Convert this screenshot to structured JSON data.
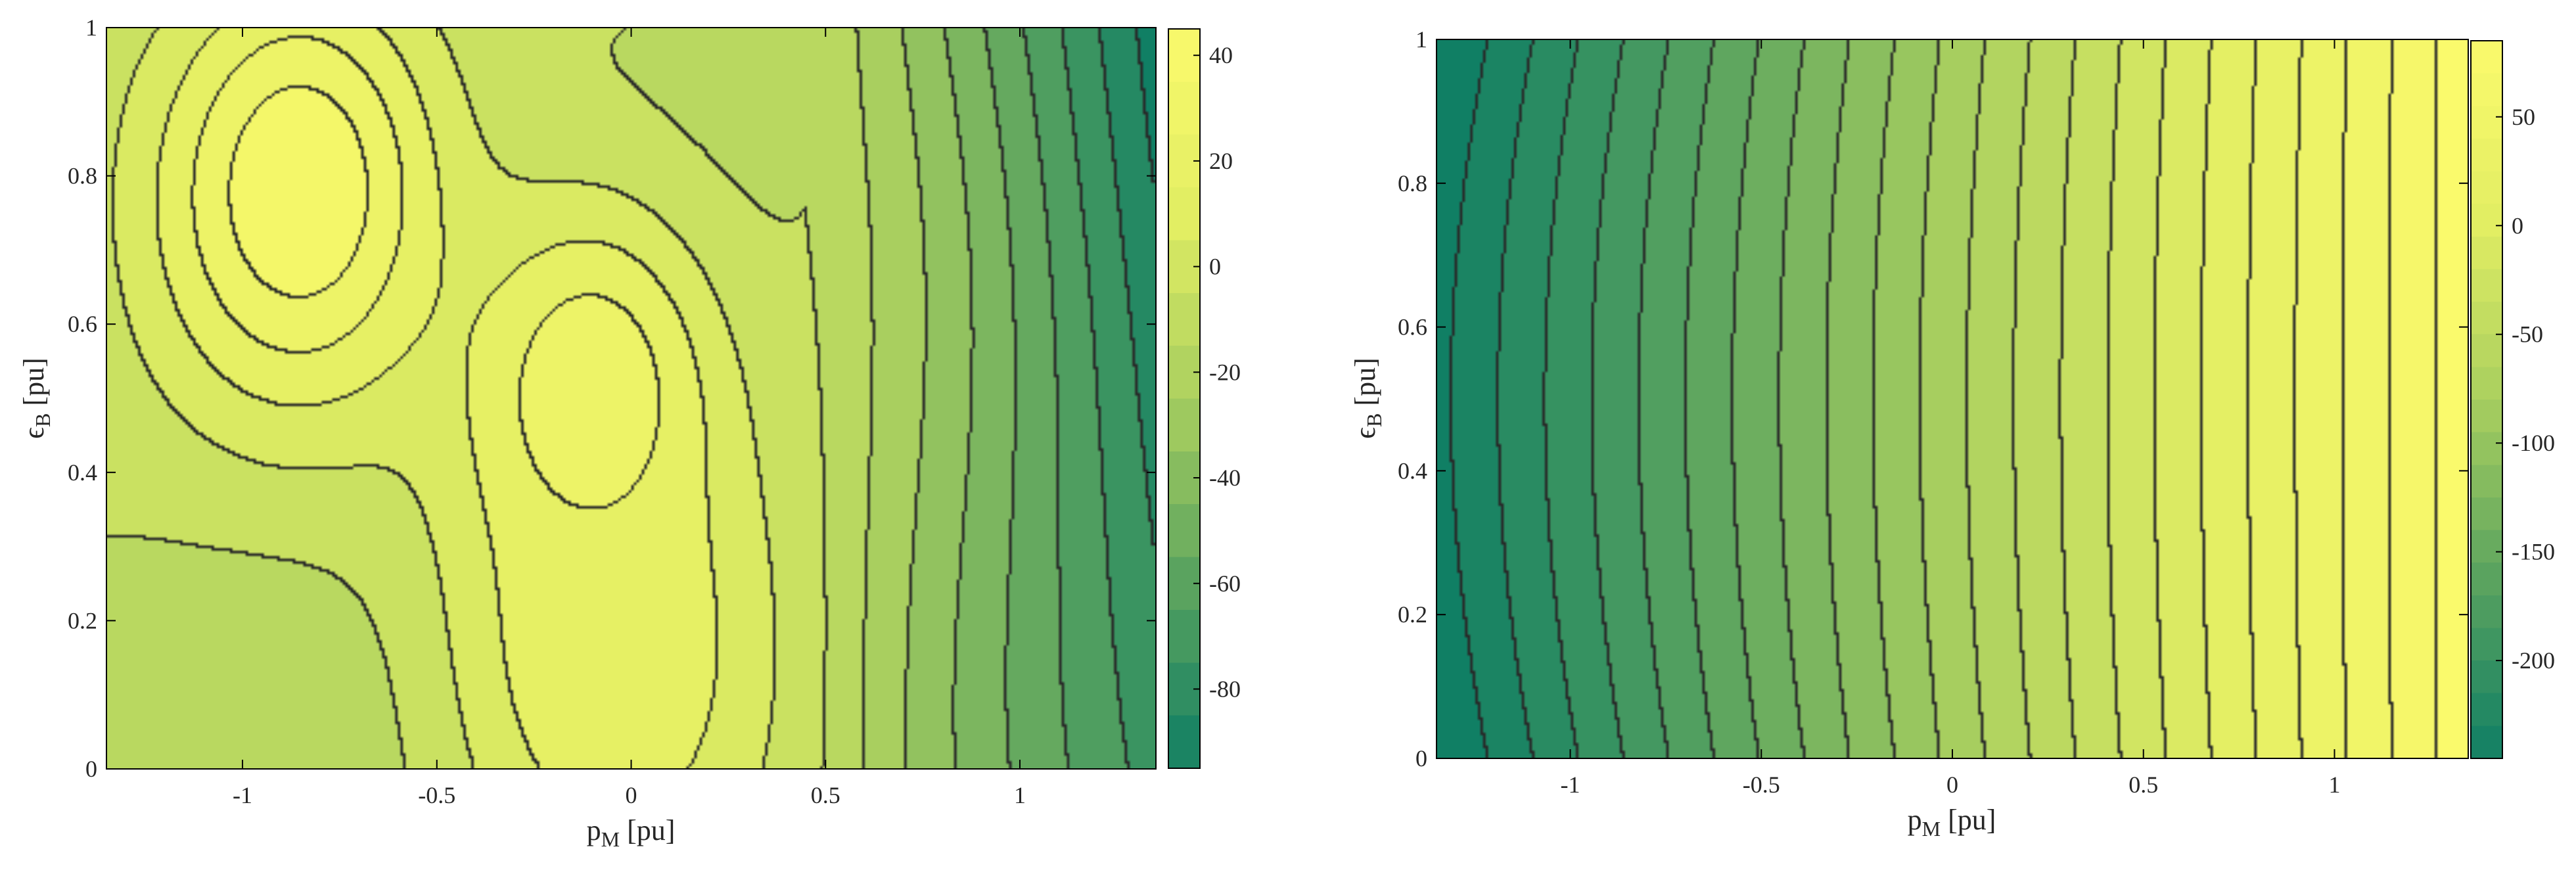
{
  "chart_data": [
    {
      "type": "heatmap",
      "title": "",
      "xlabel": "p",
      "xlabel_sub": "M",
      "xlabel_unit": " [pu]",
      "ylabel": "ϵ",
      "ylabel_sub": "B",
      "ylabel_unit": " [pu]",
      "xlim": [
        -1.35,
        1.35
      ],
      "ylim": [
        0,
        1
      ],
      "xticks": [
        -1,
        -0.5,
        0,
        0.5,
        1
      ],
      "xtick_labels": [
        "-1",
        "-0.5",
        "0",
        "0.5",
        "1"
      ],
      "yticks": [
        0,
        0.2,
        0.4,
        0.6,
        0.8,
        1
      ],
      "ytick_labels": [
        "0",
        "0.2",
        "0.4",
        "0.6",
        "0.8",
        "1"
      ],
      "colorbar": {
        "range": [
          -95,
          45
        ],
        "ticks": [
          40,
          20,
          0,
          -20,
          -40,
          -60,
          -80
        ],
        "tick_labels": [
          "40",
          "20",
          "0",
          "-20",
          "-40",
          "-60",
          "-80"
        ]
      },
      "colormap": [
        "#107f64",
        "#5aa35f",
        "#a9cf5f",
        "#e2ee63",
        "#fbfa6c"
      ],
      "contour_step": 10,
      "approx_field": {
        "peaks": [
          [
            -0.85,
            0.78,
            40
          ],
          [
            -0.1,
            0.5,
            30
          ],
          [
            -0.05,
            0.15,
            20
          ]
        ],
        "low_region_start_x": 0.45,
        "low_value_at_xmax": -95
      }
    },
    {
      "type": "heatmap",
      "title": "",
      "xlabel": "p",
      "xlabel_sub": "M",
      "xlabel_unit": " [pu]",
      "ylabel": "ϵ",
      "ylabel_sub": "B",
      "ylabel_unit": " [pu]",
      "xlim": [
        -1.35,
        1.35
      ],
      "ylim": [
        0,
        1
      ],
      "xticks": [
        -1,
        -0.5,
        0,
        0.5,
        1
      ],
      "xtick_labels": [
        "-1",
        "-0.5",
        "0",
        "0.5",
        "1"
      ],
      "yticks": [
        0,
        0.2,
        0.4,
        0.6,
        0.8,
        1
      ],
      "ytick_labels": [
        "0",
        "0.2",
        "0.4",
        "0.6",
        "0.8",
        "1"
      ],
      "colorbar": {
        "range": [
          -245,
          85
        ],
        "ticks": [
          50,
          0,
          -50,
          -100,
          -150,
          -200
        ],
        "tick_labels": [
          "50",
          "0",
          "-50",
          "-100",
          "-150",
          "-200"
        ]
      },
      "colormap": [
        "#107f64",
        "#5aa35f",
        "#a9cf5f",
        "#e2ee63",
        "#fbfa6c"
      ],
      "contour_step": 15,
      "approx_field": {
        "value_at_xmin": -245,
        "value_at_xmax": 85,
        "curvature": 0.15
      }
    }
  ]
}
